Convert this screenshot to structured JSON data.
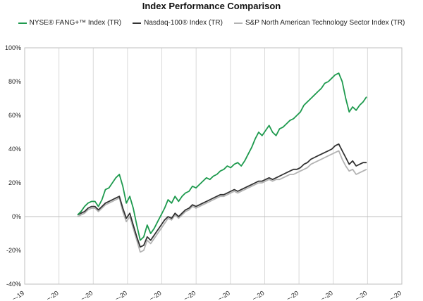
{
  "chart_data": {
    "type": "line",
    "title": "Index Performance Comparison",
    "xlabel": "",
    "ylabel": "",
    "ylim": [
      -40,
      100
    ],
    "yticks": [
      -40,
      -20,
      0,
      20,
      40,
      60,
      80,
      100
    ],
    "ytick_labels": [
      "-40%",
      "-20%",
      "0%",
      "20%",
      "40%",
      "60%",
      "80%",
      "100%"
    ],
    "xtick_labels": [
      "~-19",
      "~-20",
      "~-20",
      "~-20",
      "~-20",
      "~-20",
      "~-20",
      "~-20",
      "~-20",
      "~-20",
      "~-20",
      "~-20"
    ],
    "grid": "vertical",
    "legend_position": "top-center",
    "x": [
      0,
      1,
      2,
      3,
      4,
      5,
      6,
      7,
      8,
      9,
      10,
      11,
      12,
      13,
      14,
      15,
      16,
      17,
      18,
      19,
      20,
      21,
      22,
      23,
      24,
      25,
      26,
      27,
      28,
      29,
      30,
      31,
      32,
      33,
      34,
      35,
      36,
      37,
      38,
      39,
      40,
      41,
      42,
      43,
      44,
      45,
      46,
      47,
      48,
      49,
      50,
      51,
      52,
      53,
      54,
      55,
      56,
      57,
      58,
      59,
      60,
      61,
      62,
      63,
      64,
      65,
      66,
      67,
      68,
      69,
      70,
      71,
      72,
      73,
      74,
      75,
      76,
      77,
      78,
      79,
      80,
      81,
      82,
      83
    ],
    "series": [
      {
        "name": "NYSE® FANG+™ Index (TR)",
        "color": "#1e9a4e",
        "values": [
          1,
          3,
          6,
          8,
          9,
          9,
          6,
          10,
          16,
          17,
          20,
          23,
          25,
          18,
          8,
          12,
          5,
          -5,
          -14,
          -12,
          -5,
          -10,
          -7,
          -3,
          1,
          5,
          10,
          8,
          12,
          9,
          12,
          14,
          15,
          18,
          17,
          19,
          21,
          23,
          22,
          24,
          25,
          27,
          28,
          30,
          29,
          31,
          32,
          30,
          33,
          37,
          41,
          46,
          50,
          48,
          51,
          54,
          50,
          48,
          52,
          53,
          55,
          57,
          58,
          60,
          62,
          66,
          68,
          70,
          72,
          74,
          76,
          79,
          80,
          82,
          84,
          85,
          80,
          70,
          62,
          65,
          63,
          66,
          68,
          71
        ]
      },
      {
        "name": "Nasdaq-100® Index (TR)",
        "color": "#333333",
        "values": [
          1,
          2,
          3,
          5,
          6,
          6,
          4,
          6,
          8,
          9,
          10,
          11,
          12,
          5,
          -1,
          2,
          -5,
          -12,
          -18,
          -17,
          -12,
          -14,
          -11,
          -8,
          -5,
          -2,
          0,
          -1,
          2,
          0,
          2,
          4,
          5,
          7,
          6,
          7,
          8,
          9,
          10,
          11,
          12,
          13,
          13,
          14,
          15,
          16,
          15,
          16,
          17,
          18,
          19,
          20,
          21,
          21,
          22,
          23,
          22,
          23,
          24,
          25,
          26,
          27,
          28,
          28,
          29,
          31,
          32,
          34,
          35,
          36,
          37,
          38,
          39,
          40,
          42,
          43,
          39,
          35,
          31,
          33,
          30,
          31,
          32,
          32
        ]
      },
      {
        "name": "S&P North American Technology Sector Index (TR)",
        "color": "#b3b3b3",
        "values": [
          0,
          1,
          2,
          4,
          5,
          5,
          3,
          5,
          7,
          8,
          9,
          10,
          11,
          3,
          -3,
          0,
          -7,
          -14,
          -21,
          -20,
          -14,
          -16,
          -13,
          -10,
          -7,
          -4,
          -1,
          -2,
          1,
          -1,
          1,
          3,
          4,
          6,
          5,
          6,
          7,
          8,
          9,
          10,
          11,
          12,
          12,
          13,
          14,
          15,
          14,
          15,
          16,
          17,
          18,
          19,
          20,
          20,
          21,
          22,
          21,
          22,
          22,
          23,
          24,
          25,
          25,
          26,
          27,
          28,
          29,
          31,
          32,
          33,
          34,
          35,
          36,
          37,
          38,
          39,
          34,
          30,
          27,
          28,
          25,
          26,
          27,
          28
        ]
      }
    ]
  }
}
